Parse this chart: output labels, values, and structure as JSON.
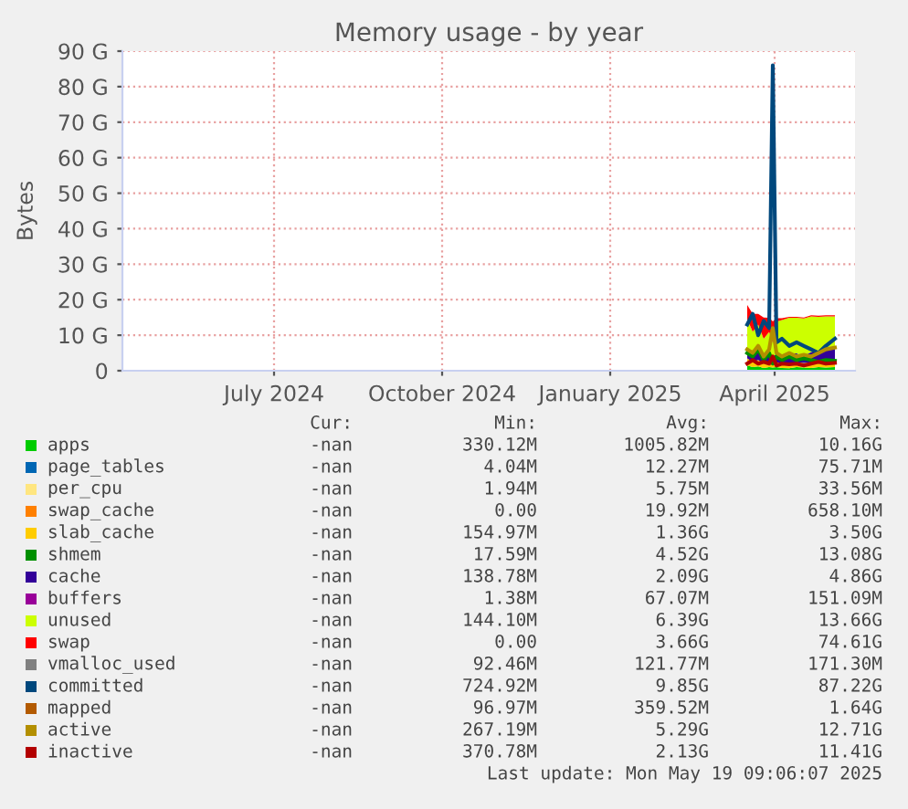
{
  "chart_data": {
    "type": "area",
    "title": "Memory usage - by year",
    "ylabel": "Bytes",
    "stacked": true,
    "grid": true,
    "legend": "bottom",
    "x": [
      "2025-04-01",
      "2025-04-04",
      "2025-04-07",
      "2025-04-10",
      "2025-04-13",
      "2025-04-15",
      "2025-04-17",
      "2025-04-20",
      "2025-04-24",
      "2025-04-28",
      "2025-05-02",
      "2025-05-06",
      "2025-05-10",
      "2025-05-14",
      "2025-05-19"
    ],
    "xlim": [
      "2024-04-24",
      "2025-05-30"
    ],
    "xticks": [
      {
        "value": "2024-07-16",
        "label": "July 2024"
      },
      {
        "value": "2024-10-16",
        "label": "October 2024"
      },
      {
        "value": "2025-01-16",
        "label": "January 2025"
      },
      {
        "value": "2025-04-16",
        "label": "April 2025"
      }
    ],
    "ylim": [
      0,
      90
    ],
    "yticks": [
      0,
      {
        "value": 10,
        "label": "10 G"
      },
      {
        "value": 20,
        "label": "20 G"
      },
      {
        "value": 30,
        "label": "30 G"
      },
      {
        "value": 40,
        "label": "40 G"
      },
      {
        "value": 50,
        "label": "50 G"
      },
      {
        "value": 60,
        "label": "60 G"
      },
      {
        "value": 70,
        "label": "70 G"
      },
      {
        "value": 80,
        "label": "80 G"
      },
      {
        "value": 90,
        "label": "90 G"
      }
    ],
    "series": [
      {
        "name": "apps",
        "color": "#00cc00",
        "values": [
          1.5,
          1.0,
          1.2,
          0.8,
          1.0,
          0.9,
          1.0,
          0.8,
          0.7,
          1.0,
          0.9,
          0.8,
          1.0,
          0.9,
          1.0
        ]
      },
      {
        "name": "page_tables",
        "color": "#0066b3",
        "values": [
          null,
          null,
          null,
          null,
          null,
          null,
          null,
          null,
          null,
          null,
          null,
          null,
          null,
          null,
          null
        ]
      },
      {
        "name": "per_cpu",
        "color": "#ffe680",
        "values": [
          null,
          null,
          null,
          null,
          null,
          null,
          null,
          null,
          null,
          null,
          null,
          null,
          null,
          null,
          null
        ]
      },
      {
        "name": "swap_cache",
        "color": "#ff8000",
        "values": [
          null,
          null,
          null,
          null,
          null,
          null,
          null,
          null,
          null,
          null,
          null,
          null,
          null,
          null,
          null
        ]
      },
      {
        "name": "slab_cache",
        "color": "#ffcc00",
        "values": [
          2.0,
          1.5,
          1.8,
          1.2,
          1.4,
          1.0,
          1.3,
          1.5,
          1.2,
          1.4,
          1.3,
          1.5,
          1.2,
          1.4,
          1.3
        ]
      },
      {
        "name": "shmem",
        "type": "line",
        "color": "#008f00",
        "values": [
          5,
          4,
          6,
          3,
          5,
          2,
          4,
          3,
          4,
          3,
          3.5,
          3,
          2.5,
          3,
          2.8
        ]
      },
      {
        "name": "cache",
        "color": "#330099",
        "values": [
          3,
          2.5,
          3,
          2,
          2.5,
          2,
          2.5,
          2,
          3,
          2.5,
          2,
          3,
          3.5,
          4,
          4.5
        ]
      },
      {
        "name": "buffers",
        "color": "#990099",
        "values": [
          null,
          null,
          null,
          null,
          null,
          null,
          null,
          null,
          null,
          null,
          null,
          null,
          null,
          null,
          null
        ]
      },
      {
        "name": "unused",
        "color": "#ccff00",
        "values": [
          8,
          6,
          7,
          5,
          6,
          4,
          9,
          10,
          10,
          10,
          10.5,
          10,
          9.5,
          9,
          8.5
        ]
      },
      {
        "name": "swap",
        "color": "#ff0000",
        "values": [
          4,
          5,
          3,
          6,
          4,
          6,
          1,
          0.5,
          0.3,
          0.3,
          0.3,
          0.3,
          0.3,
          0.3,
          0.3
        ]
      },
      {
        "name": "vmalloc_used",
        "type": "line",
        "color": "#808080",
        "values": [
          null,
          null,
          null,
          null,
          null,
          null,
          null,
          null,
          null,
          null,
          null,
          null,
          null,
          null,
          null
        ]
      },
      {
        "name": "committed",
        "type": "line",
        "color": "#00487d",
        "values": [
          13,
          16,
          10,
          14,
          12,
          86,
          8,
          9,
          7,
          8,
          7,
          6,
          5,
          7,
          9
        ]
      },
      {
        "name": "mapped",
        "type": "line",
        "color": "#b35a00",
        "values": [
          null,
          null,
          null,
          null,
          null,
          null,
          null,
          null,
          null,
          null,
          null,
          null,
          null,
          null,
          null
        ]
      },
      {
        "name": "active",
        "type": "line",
        "color": "#b38f00",
        "values": [
          6,
          5,
          7,
          4,
          6,
          12,
          5,
          4,
          5,
          4,
          4.5,
          4,
          5,
          6,
          6.5
        ]
      },
      {
        "name": "inactive",
        "type": "line",
        "color": "#b30000",
        "values": [
          2,
          3,
          2,
          2.5,
          2,
          4,
          1.5,
          2,
          1.8,
          2,
          1.5,
          2,
          2.5,
          2,
          2.2
        ]
      }
    ],
    "annotations": [
      "Cur:",
      "Min:",
      "Avg:",
      "Max:",
      "-nan",
      "330.12M",
      "1005.82M",
      "10.16G",
      "-nan",
      "4.04M",
      "12.27M",
      "75.71M",
      "-nan",
      "1.94M",
      "5.75M",
      "33.56M",
      "-nan",
      "0.00",
      "19.92M",
      "658.10M",
      "-nan",
      "154.97M",
      "1.36G",
      "3.50G",
      "-nan",
      "17.59M",
      "4.52G",
      "13.08G",
      "-nan",
      "138.78M",
      "2.09G",
      "4.86G",
      "-nan",
      "1.38M",
      "67.07M",
      "151.09M",
      "-nan",
      "144.10M",
      "6.39G",
      "13.66G",
      "-nan",
      "0.00",
      "3.66G",
      "74.61G",
      "-nan",
      "92.46M",
      "121.77M",
      "171.30M",
      "-nan",
      "724.92M",
      "9.85G",
      "87.22G",
      "-nan",
      "96.97M",
      "359.52M",
      "1.64G",
      "-nan",
      "267.19M",
      "5.29G",
      "12.71G",
      "-nan",
      "370.78M",
      "2.13G",
      "11.41G",
      "Last update: Mon May 19 09:06:07 2025"
    ]
  }
}
